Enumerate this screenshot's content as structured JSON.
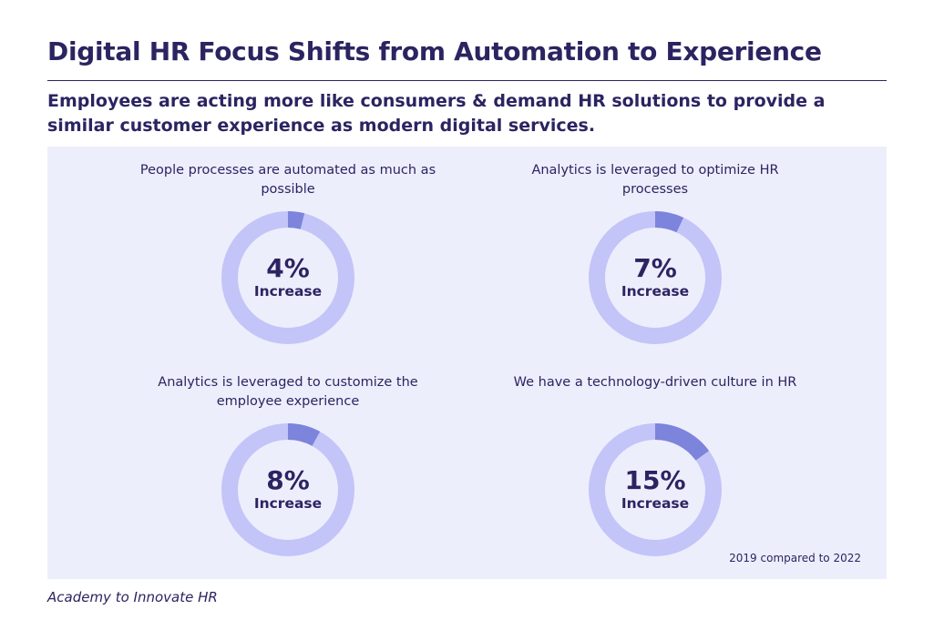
{
  "title": "Digital HR Focus Shifts from Automation to Experience",
  "subtitle": "Employees are acting more like consumers & demand HR solutions to provide a similar customer experience as modern digital services.",
  "note": "2019 compared to 2022",
  "source": "Academy to Innovate HR",
  "colors": {
    "ring": "#c3c4f7",
    "highlight": "#7c84dc",
    "text": "#2b2461",
    "panel": "#edeefc"
  },
  "chart_data": [
    {
      "type": "pie",
      "title": "People processes are automated as much as possible",
      "value": 4,
      "value_label": "4%",
      "sublabel": "Increase"
    },
    {
      "type": "pie",
      "title": "Analytics is leveraged to optimize HR processes",
      "value": 7,
      "value_label": "7%",
      "sublabel": "Increase"
    },
    {
      "type": "pie",
      "title": "Analytics is leveraged to customize the employee experience",
      "value": 8,
      "value_label": "8%",
      "sublabel": "Increase"
    },
    {
      "type": "pie",
      "title": "We have a technology-driven culture in HR",
      "value": 15,
      "value_label": "15%",
      "sublabel": "Increase"
    }
  ]
}
